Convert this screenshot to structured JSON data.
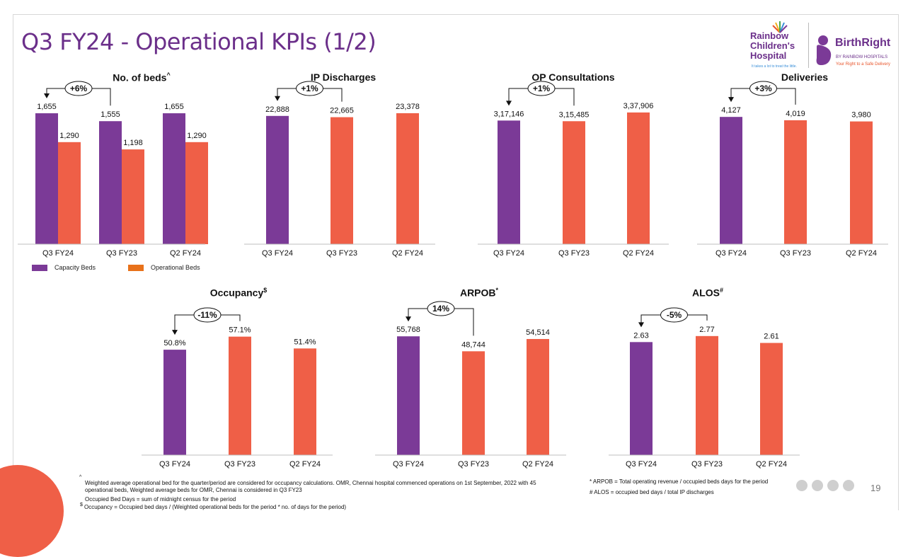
{
  "page": {
    "title": "Q3 FY24 - Operational KPIs (1/2)",
    "page_number": "19"
  },
  "logo": {
    "rainbow_line1": "Rainbow",
    "rainbow_line2": "Children's",
    "rainbow_line3": "Hospital",
    "rainbow_tagline": "It takes a lot to treat the little.",
    "birthright": "BirthRight",
    "birthright_sub": "BY RAINBOW HOSPITALS",
    "birthright_tagline": "Your Right to a Safe Delivery"
  },
  "legend": {
    "series1": "Capacity Beds",
    "series2": "Operational Beds"
  },
  "colors": {
    "purple": "#7b3a97",
    "orange": "#ef5f47",
    "title": "#6b2f8a"
  },
  "chart_data": [
    {
      "id": "beds",
      "type": "bar",
      "title": "No. of beds",
      "title_sup": "^",
      "categories": [
        "Q3 FY24",
        "Q3 FY23",
        "Q2 FY24"
      ],
      "series": [
        {
          "name": "Capacity Beds",
          "values": [
            1655,
            1555,
            1655
          ],
          "labels": [
            "1,655",
            "1,555",
            "1,655"
          ]
        },
        {
          "name": "Operational Beds",
          "values": [
            1290,
            1198,
            1290
          ],
          "labels": [
            "1,290",
            "1,198",
            "1,290"
          ]
        }
      ],
      "change": "+6%",
      "change_from": 1,
      "change_to": 0,
      "ylim": [
        0,
        1700
      ]
    },
    {
      "id": "ip",
      "type": "bar",
      "title": "IP Discharges",
      "title_sup": "",
      "categories": [
        "Q3 FY24",
        "Q3 FY23",
        "Q2 FY24"
      ],
      "values": [
        22888,
        22665,
        23378
      ],
      "labels": [
        "22,888",
        "22,665",
        "23,378"
      ],
      "change": "+1%",
      "change_from": 1,
      "change_to": 0,
      "ylim": [
        0,
        24000
      ]
    },
    {
      "id": "op",
      "type": "bar",
      "title": "OP Consultations",
      "title_sup": "",
      "categories": [
        "Q3 FY24",
        "Q3 FY23",
        "Q2 FY24"
      ],
      "values": [
        317146,
        315485,
        337906
      ],
      "labels": [
        "3,17,146",
        "3,15,485",
        "3,37,906"
      ],
      "change": "+1%",
      "change_from": 1,
      "change_to": 0,
      "ylim": [
        0,
        345000
      ]
    },
    {
      "id": "deliveries",
      "type": "bar",
      "title": "Deliveries",
      "title_sup": "",
      "categories": [
        "Q3 FY24",
        "Q3 FY23",
        "Q2 FY24"
      ],
      "values": [
        4127,
        4019,
        3980
      ],
      "labels": [
        "4,127",
        "4,019",
        "3,980"
      ],
      "change": "+3%",
      "change_from": 1,
      "change_to": 0,
      "ylim": [
        0,
        4200
      ]
    },
    {
      "id": "occupancy",
      "type": "bar",
      "title": "Occupancy",
      "title_sup": "$",
      "categories": [
        "Q3 FY24",
        "Q3 FY23",
        "Q2 FY24"
      ],
      "values": [
        50.8,
        57.1,
        51.4
      ],
      "labels": [
        "50.8%",
        "57.1%",
        "51.4%"
      ],
      "change": "-11%",
      "change_from": 1,
      "change_to": 0,
      "ylim": [
        0,
        58
      ]
    },
    {
      "id": "arpob",
      "type": "bar",
      "title": "ARPOB",
      "title_sup": "*",
      "categories": [
        "Q3 FY24",
        "Q3 FY23",
        "Q2 FY24"
      ],
      "values": [
        55768,
        48744,
        54514
      ],
      "labels": [
        "55,768",
        "48,744",
        "54,514"
      ],
      "change": "14%",
      "change_from": 1,
      "change_to": 0,
      "ylim": [
        0,
        56500
      ]
    },
    {
      "id": "alos",
      "type": "bar",
      "title": "ALOS",
      "title_sup": "#",
      "categories": [
        "Q3 FY24",
        "Q3 FY23",
        "Q2 FY24"
      ],
      "values": [
        2.63,
        2.77,
        2.61
      ],
      "labels": [
        "2.63",
        "2.77",
        "2.61"
      ],
      "change": "-5%",
      "change_from": 1,
      "change_to": 0,
      "ylim": [
        0,
        2.8
      ]
    }
  ],
  "footnotes": {
    "caret_sym": "^",
    "caret_line1": "Weighted average operational bed for the quarter/period are considered for occupancy calculations. OMR, Chennai hospital commenced operations on 1st September, 2022 with 45",
    "caret_line2": "operational beds, Weighted average beds for OMR, Chennai is considered in Q3 FY23",
    "occupied": "Occupied Bed Days = sum of midnight census for the period",
    "dollar_sym": "$",
    "occupancy": "Occupancy = Occupied bed days / (Weighted operational beds for the period * no. of  days for the period)",
    "arpob": "* ARPOB = Total operating revenue / occupied beds days for the period",
    "alos": "# ALOS = occupied bed days / total IP discharges"
  }
}
